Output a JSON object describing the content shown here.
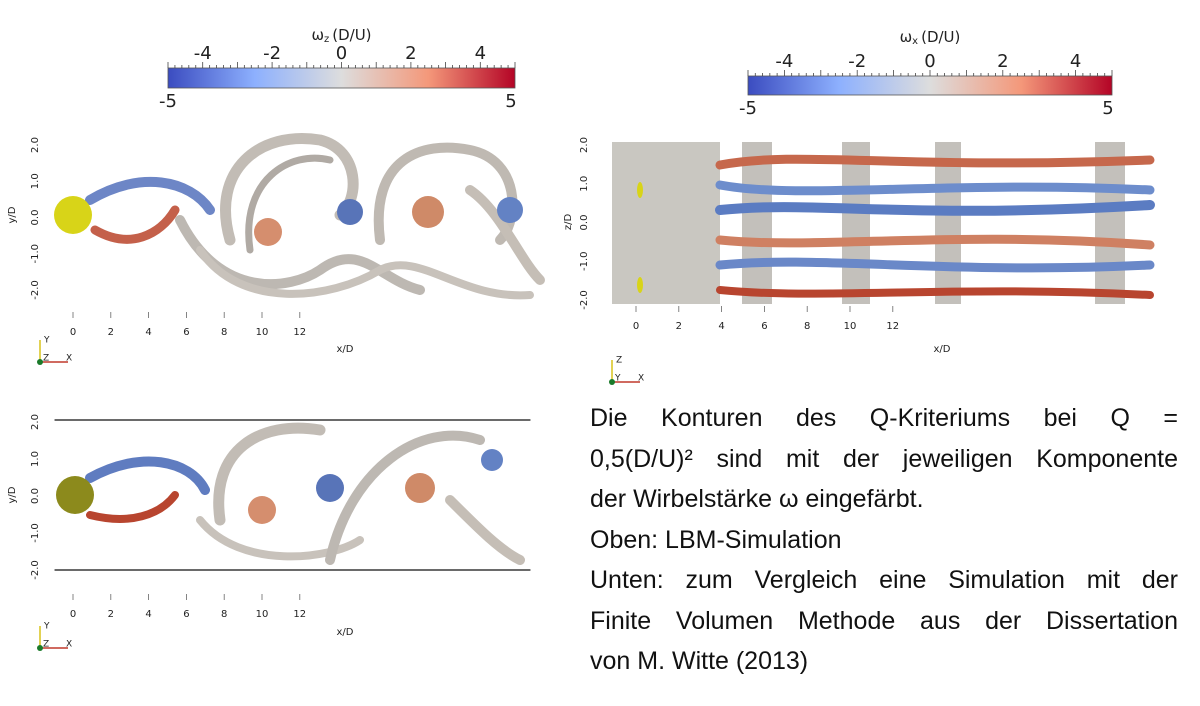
{
  "colorbars": [
    {
      "label": {
        "symbol": "ω",
        "subscript": "z",
        "unit": "(D/U)"
      },
      "ticks": [
        "-4",
        "-2",
        "0",
        "2",
        "4"
      ],
      "min": "-5",
      "max": "5"
    },
    {
      "label": {
        "symbol": "ω",
        "subscript": "x",
        "unit": "(D/U)"
      },
      "ticks": [
        "-4",
        "-2",
        "0",
        "2",
        "4"
      ],
      "min": "-5",
      "max": "5"
    }
  ],
  "panels": [
    {
      "x_label": "x/D",
      "y_label": "y/D",
      "x_ticks": [
        "0",
        "2",
        "4",
        "6",
        "8",
        "10",
        "12"
      ],
      "y_ticks": [
        "2.0",
        "1.0",
        "0.0",
        "-1.0",
        "-2.0"
      ],
      "axes_triad": [
        "Y",
        "Z",
        "X"
      ]
    },
    {
      "x_label": "x/D",
      "y_label": "z/D",
      "x_ticks": [
        "0",
        "2",
        "4",
        "6",
        "8",
        "10",
        "12"
      ],
      "y_ticks": [
        "2.0",
        "1.0",
        "0.0",
        "-1.0",
        "-2.0"
      ],
      "axes_triad": [
        "Z",
        "Y",
        "X"
      ]
    },
    {
      "x_label": "x/D",
      "y_label": "y/D",
      "x_ticks": [
        "0",
        "2",
        "4",
        "6",
        "8",
        "10",
        "12"
      ],
      "y_ticks": [
        "2.0",
        "1.0",
        "0.0",
        "-1.0",
        "-2.0"
      ],
      "axes_triad": [
        "Y",
        "Z",
        "X"
      ]
    }
  ],
  "caption": {
    "lines": [
      "Die Konturen des Q-Kriteriums bei Q =",
      "0,5(D/U)² sind mit der jeweiligen Komponente",
      "der Wirbelstärke ω eingefärbt.",
      "Oben: LBM-Simulation",
      "Unten: zum Vergleich eine Simulation mit der",
      "Finite Volumen Methode aus der Dissertation",
      "von M. Witte (2013)"
    ]
  }
}
